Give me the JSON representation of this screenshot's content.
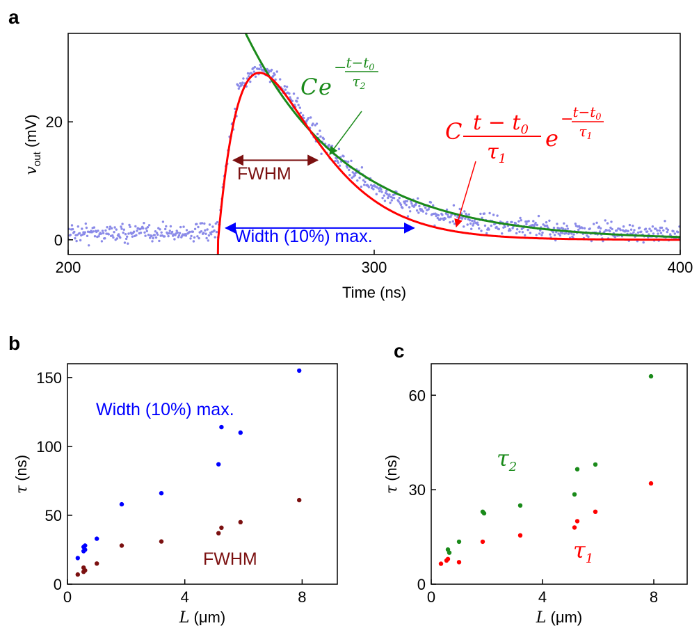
{
  "panels": {
    "a": {
      "label": "a"
    },
    "b": {
      "label": "b"
    },
    "c": {
      "label": "c"
    }
  },
  "colors": {
    "red": "#ff0000",
    "green": "#1a8a1a",
    "blue": "#0000ff",
    "darkred": "#7b1010",
    "data_dots": "#8a8ae8"
  },
  "chart_data": [
    {
      "id": "a",
      "type": "scatter",
      "title": "",
      "xlabel": "Time (ns)",
      "ylabel_main": "v",
      "ylabel_sub": "out",
      "ylabel_unit": " (mV)",
      "xlim": [
        200,
        400
      ],
      "ylim": [
        -2.5,
        35
      ],
      "xticks": [
        200,
        300,
        400
      ],
      "yticks": [
        0,
        20
      ],
      "grid": false,
      "series": [
        {
          "kind": "measured_points",
          "t0": 249,
          "noise_std": 0.9,
          "samples_per_ns": 4
        },
        {
          "kind": "fit_red",
          "C": 77,
          "t0": 249,
          "tau": 13.5
        },
        {
          "kind": "fit_green",
          "C": 46,
          "t0": 249,
          "tau": 33,
          "t_start": 248
        }
      ],
      "annotations": {
        "fwhm": {
          "text": "FWHM",
          "x1": 254,
          "x2": 281.5,
          "y": 13.5
        },
        "width": {
          "text": "Width (10%) max.",
          "x1": 251.5,
          "x2": 313,
          "y": 2.0
        },
        "green_formula": {
          "prefix": "C",
          "exp_top": "t−t",
          "exp_top_sub": "0",
          "exp_bottom": "τ",
          "exp_bottom_sub": "2",
          "exp_base": "e",
          "exp_sign": "−"
        },
        "red_formula": {
          "prefix": "C",
          "num": "t − t",
          "num_sub": "0",
          "den": "τ",
          "den_sub": "1",
          "exp_top": "t−t",
          "exp_top_sub": "0",
          "exp_bottom": "τ",
          "exp_bottom_sub": "1",
          "exp_base": "e",
          "exp_sign": "−"
        }
      }
    },
    {
      "id": "b",
      "type": "scatter",
      "title": "",
      "xlabel_main": "L",
      "xlabel_unit": " (μm)",
      "ylabel_main": "τ",
      "ylabel_unit": " (ns)",
      "xlim": [
        0,
        9.2
      ],
      "ylim": [
        0,
        160
      ],
      "xticks": [
        0,
        4,
        8
      ],
      "yticks": [
        0,
        50,
        100,
        150
      ],
      "grid": false,
      "series": [
        {
          "name": "Width (10%) max.",
          "color": "#0000ff",
          "x": [
            0.35,
            0.55,
            0.55,
            0.6,
            0.6,
            1.0,
            1.85,
            3.2,
            5.15,
            5.25,
            5.9,
            7.9
          ],
          "y": [
            19,
            24,
            27,
            25,
            28,
            33,
            58,
            66,
            87,
            114,
            110,
            155
          ]
        },
        {
          "name": "FWHM",
          "color": "#7b1010",
          "x": [
            0.35,
            0.55,
            0.55,
            0.6,
            1.0,
            1.85,
            3.2,
            5.15,
            5.25,
            5.9,
            7.9
          ],
          "y": [
            7,
            9,
            12,
            10,
            15,
            28,
            31,
            37,
            41,
            45,
            61
          ]
        }
      ]
    },
    {
      "id": "c",
      "type": "scatter",
      "title": "",
      "xlabel_main": "L",
      "xlabel_unit": " (μm)",
      "ylabel_main": "τ",
      "ylabel_unit": " (ns)",
      "xlim": [
        0,
        9.2
      ],
      "ylim": [
        0,
        70
      ],
      "xticks": [
        0,
        4,
        8
      ],
      "yticks": [
        0,
        30,
        60
      ],
      "grid": false,
      "series": [
        {
          "name": "τ",
          "sub": "2",
          "color": "#1a8a1a",
          "x": [
            0.6,
            0.65,
            1.0,
            1.85,
            1.9,
            3.2,
            5.15,
            5.25,
            5.9,
            7.9
          ],
          "y": [
            11,
            10,
            13.5,
            23,
            22.5,
            25,
            28.5,
            36.5,
            38,
            66
          ]
        },
        {
          "name": "τ",
          "sub": "1",
          "color": "#ff0000",
          "x": [
            0.35,
            0.55,
            0.6,
            1.0,
            1.85,
            3.2,
            5.15,
            5.25,
            5.9,
            7.9
          ],
          "y": [
            6.5,
            7.5,
            8,
            7,
            13.5,
            15.5,
            18,
            20,
            23,
            32
          ]
        }
      ]
    }
  ]
}
